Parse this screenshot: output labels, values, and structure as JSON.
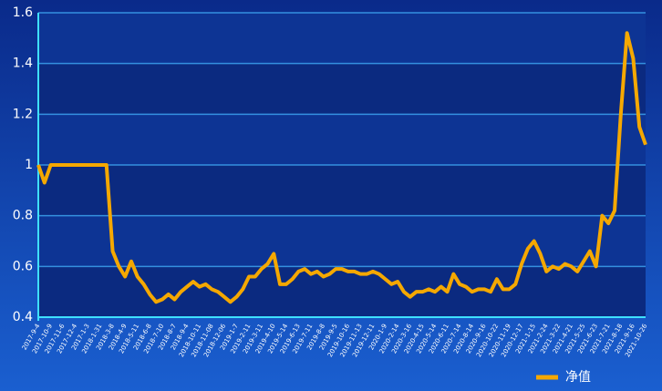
{
  "chart_data": {
    "type": "line",
    "categories": [
      "2017-9-4",
      null,
      "2017-10-9",
      null,
      "2017-11-6",
      null,
      "2017-12-4",
      null,
      "2017-1-3",
      null,
      "2018-1-31",
      null,
      "2018-3-8",
      null,
      "2018-4-9",
      null,
      "2018-5-11",
      null,
      "2018-6-8",
      null,
      "2018-7-10",
      null,
      "2018-8-7",
      null,
      "2018-9-4",
      null,
      "2018-10-11",
      null,
      "2018-11-08",
      null,
      "2018-12-06",
      null,
      "2019-1-7",
      null,
      "2019-2-11",
      null,
      "2019-3-11",
      null,
      "2019-4-10",
      null,
      "2019-5-14",
      null,
      "2019-6-13",
      null,
      "2019-7-11",
      null,
      "2019-8-8",
      null,
      "2019-9-5",
      null,
      "2019-10-16",
      null,
      "2019-11-13",
      null,
      "2019-12-11",
      null,
      "2020-1-9",
      null,
      "2020-2-14",
      null,
      "2020-3-16",
      null,
      "2020-4-15",
      null,
      "2020-5-14",
      null,
      "2020-6-11",
      null,
      "2020-7-14",
      null,
      "2020-8-14",
      null,
      "2020-9-16",
      null,
      "2020-10-22",
      null,
      "2020-11-19",
      null,
      "2020-12-17",
      null,
      "2021-1-15",
      null,
      "2021-2-24",
      null,
      "2021-3-22",
      null,
      "2021-4-21",
      null,
      "2021-5-25",
      null,
      "2021-6-23",
      null,
      "2021-7-21",
      null,
      "2021-8-18",
      null,
      "2021-9-16",
      null,
      "2021-10-26"
    ],
    "series": [
      {
        "name": "净值",
        "color": "#f5a800",
        "values": [
          1.0,
          0.93,
          1.0,
          1.0,
          1.0,
          1.0,
          1.0,
          1.0,
          1.0,
          1.0,
          1.0,
          1.0,
          0.66,
          0.6,
          0.56,
          0.62,
          0.56,
          0.53,
          0.49,
          0.46,
          0.47,
          0.49,
          0.47,
          0.5,
          0.52,
          0.54,
          0.52,
          0.53,
          0.51,
          0.5,
          0.48,
          0.46,
          0.48,
          0.51,
          0.56,
          0.56,
          0.59,
          0.61,
          0.65,
          0.53,
          0.53,
          0.55,
          0.58,
          0.59,
          0.57,
          0.58,
          0.56,
          0.57,
          0.59,
          0.59,
          0.58,
          0.58,
          0.57,
          0.57,
          0.58,
          0.57,
          0.55,
          0.53,
          0.54,
          0.5,
          0.48,
          0.5,
          0.5,
          0.51,
          0.5,
          0.52,
          0.5,
          0.57,
          0.53,
          0.52,
          0.5,
          0.51,
          0.51,
          0.5,
          0.55,
          0.51,
          0.51,
          0.53,
          0.61,
          0.67,
          0.7,
          0.65,
          0.58,
          0.6,
          0.59,
          0.61,
          0.6,
          0.58,
          0.62,
          0.66,
          0.6,
          0.8,
          0.77,
          0.82,
          1.2,
          1.52,
          1.42,
          1.15,
          1.08
        ]
      }
    ],
    "ylim": [
      0.4,
      1.6
    ],
    "yticks": [
      0.4,
      0.6,
      0.8,
      1,
      1.2,
      1.4,
      1.6
    ],
    "grid": true,
    "legend": "bottom-right"
  }
}
